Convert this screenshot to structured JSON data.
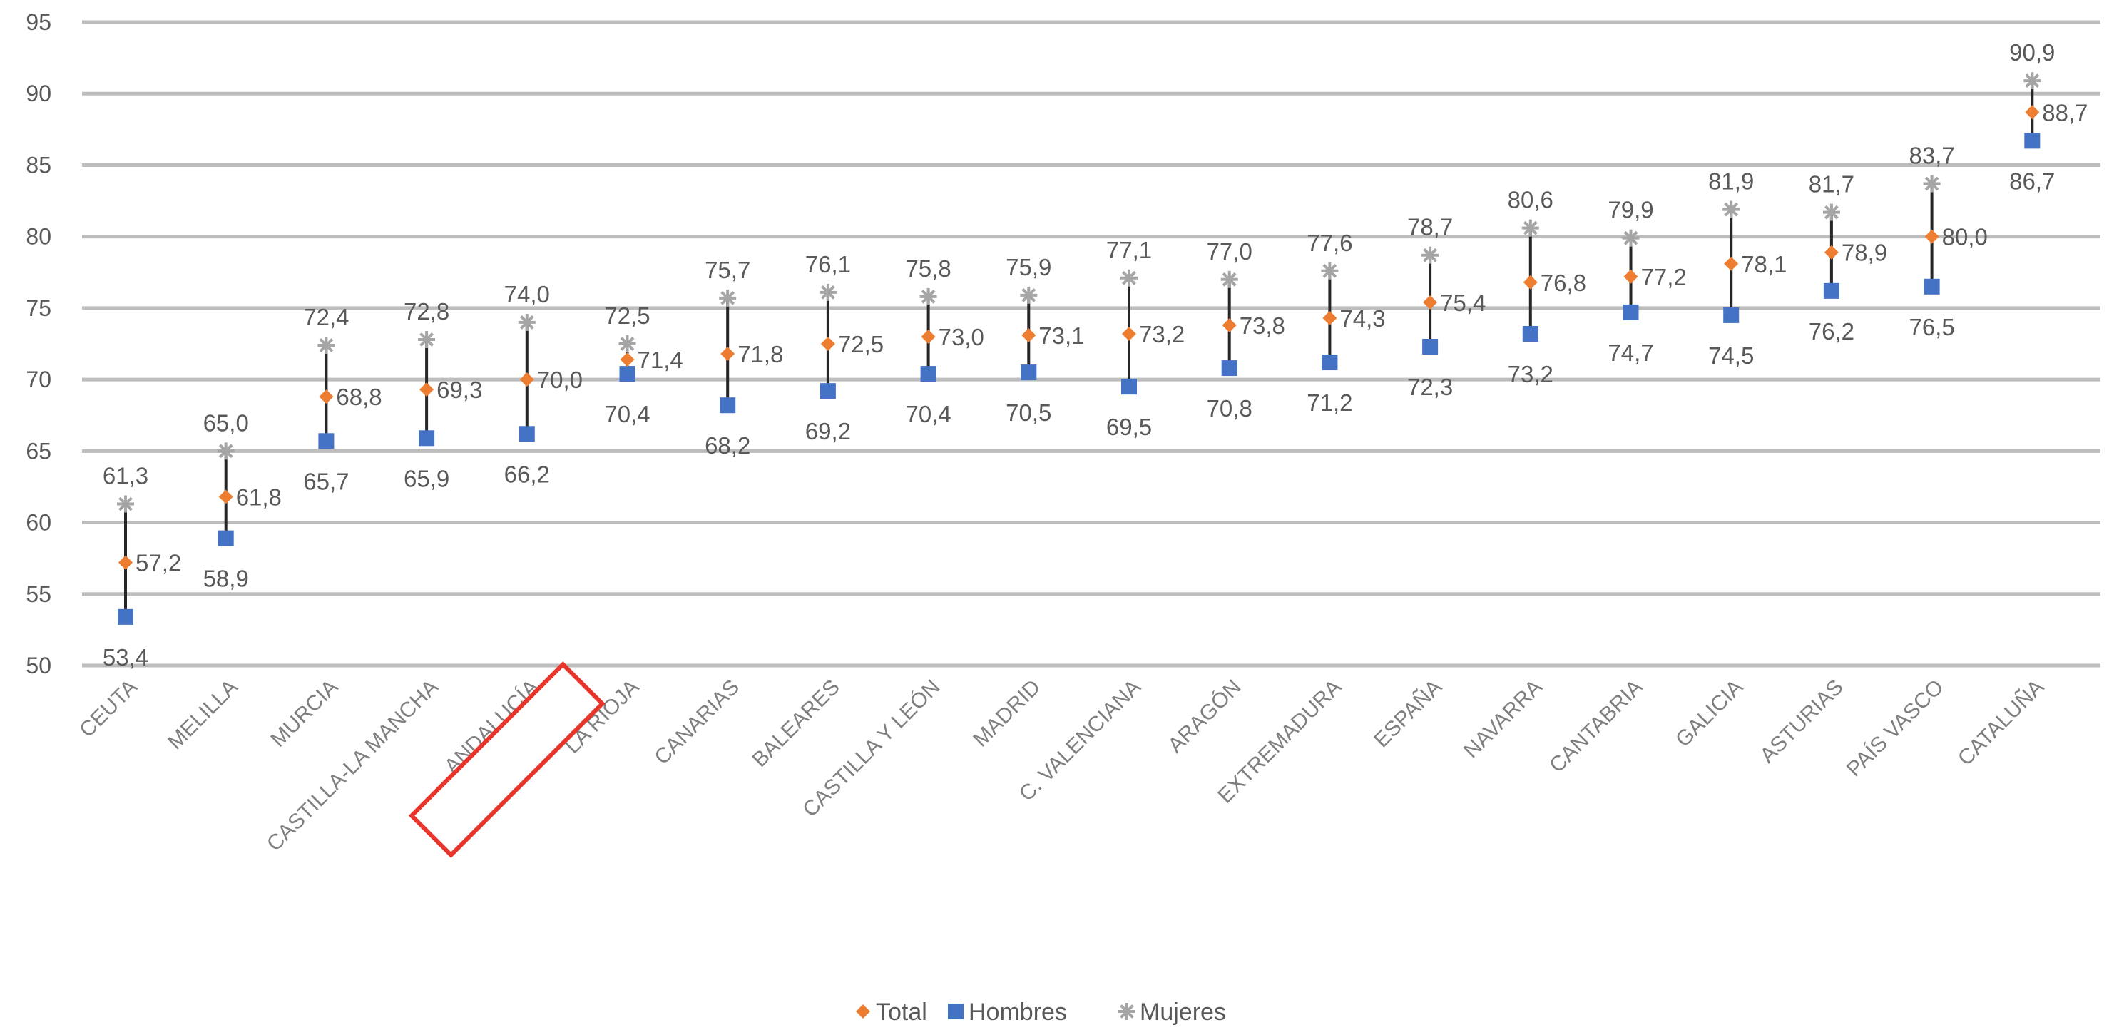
{
  "chart_data": {
    "type": "scatter",
    "categories": [
      "CEUTA",
      "MELILLA",
      "MURCIA",
      "CASTILLA-LA MANCHA",
      "ANDALUCÍA",
      "LA RIOJA",
      "CANARIAS",
      "BALEARES",
      "CASTILLA Y LEÓN",
      "MADRID",
      "C. VALENCIANA",
      "ARAGÓN",
      "EXTREMADURA",
      "ESPAÑA",
      "NAVARRA",
      "CANTABRIA",
      "GALICIA",
      "ASTURIAS",
      "PAÍS VASCO",
      "CATALUÑA"
    ],
    "series": [
      {
        "name": "Total",
        "color": "#ed7d31",
        "marker": "diamond",
        "values": [
          57.2,
          61.8,
          68.8,
          69.3,
          70.0,
          71.4,
          71.8,
          72.5,
          73.0,
          73.1,
          73.2,
          73.8,
          74.3,
          75.4,
          76.8,
          77.2,
          78.1,
          78.9,
          80.0,
          88.7
        ],
        "labels": [
          "57,2",
          "61,8",
          "68,8",
          "69,3",
          "70,0",
          "71,4",
          "71,8",
          "72,5",
          "73,0",
          "73,1",
          "73,2",
          "73,8",
          "74,3",
          "75,4",
          "76,8",
          "77,2",
          "78,1",
          "78,9",
          "80,0",
          "88,7"
        ]
      },
      {
        "name": "Hombres",
        "color": "#4472c4",
        "marker": "square",
        "values": [
          53.4,
          58.9,
          65.7,
          65.9,
          66.2,
          70.4,
          68.2,
          69.2,
          70.4,
          70.5,
          69.5,
          70.8,
          71.2,
          72.3,
          73.2,
          74.7,
          74.5,
          76.2,
          76.5,
          86.7
        ],
        "labels": [
          "53,4",
          "58,9",
          "65,7",
          "65,9",
          "66,2",
          "70,4",
          "68,2",
          "69,2",
          "70,4",
          "70,5",
          "69,5",
          "70,8",
          "71,2",
          "72,3",
          "73,2",
          "74,7",
          "74,5",
          "76,2",
          "76,5",
          "86,7"
        ]
      },
      {
        "name": "Mujeres",
        "color": "#a5a5a5",
        "marker": "star",
        "values": [
          61.3,
          65.0,
          72.4,
          72.8,
          74.0,
          72.5,
          75.7,
          76.1,
          75.8,
          75.9,
          77.1,
          77.0,
          77.6,
          78.7,
          80.6,
          79.9,
          81.9,
          81.7,
          83.7,
          90.9
        ],
        "labels": [
          "61,3",
          "65,0",
          "72,4",
          "72,8",
          "74,0",
          "72,5",
          "75,7",
          "76,1",
          "75,8",
          "75,9",
          "77,1",
          "77,0",
          "77,6",
          "78,7",
          "80,6",
          "79,9",
          "81,9",
          "81,7",
          "83,7",
          "90,9"
        ]
      }
    ],
    "ylim": [
      50,
      95
    ],
    "yticks": [
      50,
      55,
      60,
      65,
      70,
      75,
      80,
      85,
      90,
      95
    ],
    "grid": true,
    "legend": "bottom",
    "highlight": {
      "category": "ANDALUCÍA",
      "color": "#e8352b"
    }
  }
}
